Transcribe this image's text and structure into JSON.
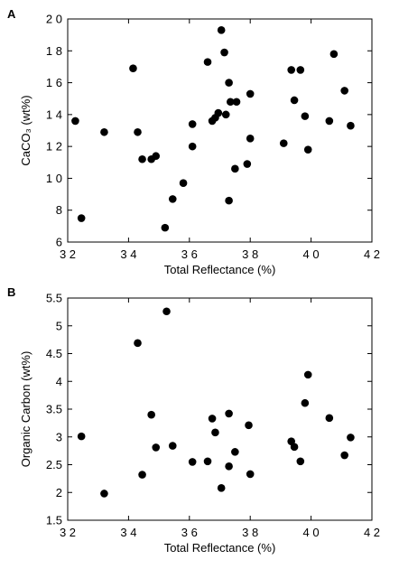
{
  "panels": [
    {
      "label": "A",
      "xlabel": "Total Reflectance (%)",
      "ylabel": "CaCO₃ (wt%)"
    },
    {
      "label": "B",
      "xlabel": "Total Reflectance (%)",
      "ylabel": "Organic Carbon (wt%)"
    }
  ],
  "chart_data": [
    {
      "type": "scatter",
      "panel": "A",
      "xlabel": "Total Reflectance (%)",
      "ylabel": "CaCO3 (wt%)",
      "xlim": [
        32,
        42
      ],
      "ylim": [
        6,
        20
      ],
      "xticks": [
        32,
        34,
        36,
        38,
        40,
        42
      ],
      "yticks": [
        6,
        8,
        10,
        12,
        14,
        16,
        18,
        20
      ],
      "xtick_labels": [
        "3 2",
        "3 4",
        "3 6",
        "3 8",
        "4 0",
        "4 2"
      ],
      "ytick_labels": [
        "6",
        "8",
        "1 0",
        "1 2",
        "1 4",
        "1 6",
        "1 8",
        "2 0"
      ],
      "grid": false,
      "marker_color": "#000000",
      "points": [
        {
          "x": 32.25,
          "y": 13.6
        },
        {
          "x": 32.45,
          "y": 7.5
        },
        {
          "x": 33.2,
          "y": 12.9
        },
        {
          "x": 34.15,
          "y": 16.9
        },
        {
          "x": 34.3,
          "y": 12.9
        },
        {
          "x": 34.45,
          "y": 11.2
        },
        {
          "x": 34.75,
          "y": 11.2
        },
        {
          "x": 34.9,
          "y": 11.4
        },
        {
          "x": 35.2,
          "y": 6.9
        },
        {
          "x": 35.45,
          "y": 8.7
        },
        {
          "x": 35.8,
          "y": 9.7
        },
        {
          "x": 36.1,
          "y": 13.4
        },
        {
          "x": 36.1,
          "y": 12.0
        },
        {
          "x": 36.6,
          "y": 17.3
        },
        {
          "x": 36.75,
          "y": 13.6
        },
        {
          "x": 36.85,
          "y": 13.8
        },
        {
          "x": 36.95,
          "y": 14.1
        },
        {
          "x": 37.05,
          "y": 19.3
        },
        {
          "x": 37.15,
          "y": 17.9
        },
        {
          "x": 37.2,
          "y": 14.0
        },
        {
          "x": 37.3,
          "y": 16.0
        },
        {
          "x": 37.35,
          "y": 14.8
        },
        {
          "x": 37.55,
          "y": 14.8
        },
        {
          "x": 37.5,
          "y": 10.6
        },
        {
          "x": 37.3,
          "y": 8.6
        },
        {
          "x": 37.9,
          "y": 10.9
        },
        {
          "x": 38.0,
          "y": 15.3
        },
        {
          "x": 38.0,
          "y": 12.5
        },
        {
          "x": 39.1,
          "y": 12.2
        },
        {
          "x": 39.35,
          "y": 16.8
        },
        {
          "x": 39.45,
          "y": 14.9
        },
        {
          "x": 39.65,
          "y": 16.8
        },
        {
          "x": 39.8,
          "y": 13.9
        },
        {
          "x": 39.9,
          "y": 11.8
        },
        {
          "x": 40.6,
          "y": 13.6
        },
        {
          "x": 40.75,
          "y": 17.8
        },
        {
          "x": 41.1,
          "y": 15.5
        },
        {
          "x": 41.3,
          "y": 13.3
        }
      ]
    },
    {
      "type": "scatter",
      "panel": "B",
      "xlabel": "Total Reflectance (%)",
      "ylabel": "Organic Carbon (wt%)",
      "xlim": [
        32,
        42
      ],
      "ylim": [
        1.5,
        5.5
      ],
      "xticks": [
        32,
        34,
        36,
        38,
        40,
        42
      ],
      "yticks": [
        1.5,
        2,
        2.5,
        3,
        3.5,
        4,
        4.5,
        5,
        5.5
      ],
      "xtick_labels": [
        "3 2",
        "3 4",
        "3 6",
        "3 8",
        "4 0",
        "4 2"
      ],
      "ytick_labels": [
        "1.5",
        "2",
        "2.5",
        "3",
        "3.5",
        "4",
        "4.5",
        "5",
        "5.5"
      ],
      "grid": false,
      "marker_color": "#000000",
      "points": [
        {
          "x": 32.45,
          "y": 3.01
        },
        {
          "x": 33.2,
          "y": 1.98
        },
        {
          "x": 34.3,
          "y": 4.69
        },
        {
          "x": 34.45,
          "y": 2.32
        },
        {
          "x": 34.75,
          "y": 3.4
        },
        {
          "x": 34.9,
          "y": 2.81
        },
        {
          "x": 35.25,
          "y": 5.26
        },
        {
          "x": 35.45,
          "y": 2.84
        },
        {
          "x": 36.1,
          "y": 2.55
        },
        {
          "x": 36.6,
          "y": 2.56
        },
        {
          "x": 36.75,
          "y": 3.33
        },
        {
          "x": 36.85,
          "y": 3.08
        },
        {
          "x": 37.05,
          "y": 2.08
        },
        {
          "x": 37.3,
          "y": 3.42
        },
        {
          "x": 37.3,
          "y": 2.47
        },
        {
          "x": 37.5,
          "y": 2.73
        },
        {
          "x": 37.95,
          "y": 3.21
        },
        {
          "x": 38.0,
          "y": 2.33
        },
        {
          "x": 39.35,
          "y": 2.92
        },
        {
          "x": 39.45,
          "y": 2.82
        },
        {
          "x": 39.65,
          "y": 2.56
        },
        {
          "x": 39.8,
          "y": 3.61
        },
        {
          "x": 39.9,
          "y": 4.12
        },
        {
          "x": 40.6,
          "y": 3.34
        },
        {
          "x": 41.1,
          "y": 2.67
        },
        {
          "x": 41.3,
          "y": 2.99
        }
      ]
    }
  ]
}
